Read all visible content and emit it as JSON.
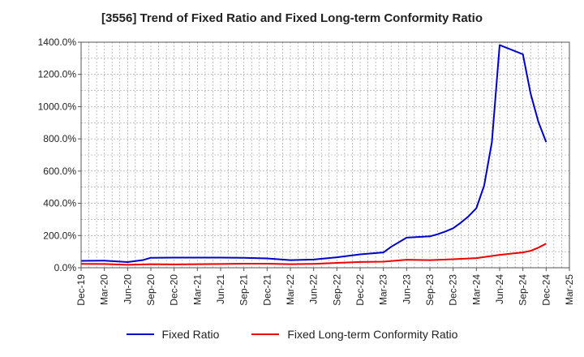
{
  "chart_data": {
    "type": "line",
    "title": "[3556]  Trend of Fixed Ratio and Fixed Long-term Conformity Ratio",
    "xlabel": "",
    "ylabel": "",
    "ylim": [
      0,
      1400
    ],
    "yticks": [
      0,
      200,
      400,
      600,
      800,
      1000,
      1200,
      1400
    ],
    "ytick_labels": [
      "0.0%",
      "200.0%",
      "400.0%",
      "600.0%",
      "800.0%",
      "1000.0%",
      "1200.0%",
      "1400.0%"
    ],
    "xtick_labels": [
      "Dec-19",
      "Mar-20",
      "Jun-20",
      "Sep-20",
      "Dec-20",
      "Mar-21",
      "Jun-21",
      "Sep-21",
      "Dec-21",
      "Mar-22",
      "Jun-22",
      "Sep-22",
      "Dec-22",
      "Mar-23",
      "Jun-23",
      "Sep-23",
      "Dec-23",
      "Mar-24",
      "Jun-24",
      "Sep-24",
      "Dec-24",
      "Mar-25"
    ],
    "grid": true,
    "legend_position": "bottom",
    "series": [
      {
        "name": "Fixed Ratio",
        "color": "#0000cc",
        "points": [
          [
            "Dec-19",
            43
          ],
          [
            "Mar-20",
            44
          ],
          [
            "Jun-20",
            35
          ],
          [
            "Aug-20",
            48
          ],
          [
            "Sep-20",
            62
          ],
          [
            "Dec-20",
            63
          ],
          [
            "Mar-21",
            63
          ],
          [
            "Jun-21",
            63
          ],
          [
            "Sep-21",
            62
          ],
          [
            "Dec-21",
            58
          ],
          [
            "Mar-22",
            47
          ],
          [
            "Jun-22",
            51
          ],
          [
            "Sep-22",
            65
          ],
          [
            "Dec-22",
            83
          ],
          [
            "Mar-23",
            95
          ],
          [
            "Apr-23",
            130
          ],
          [
            "Jun-23",
            187
          ],
          [
            "Sep-23",
            195
          ],
          [
            "Oct-23",
            208
          ],
          [
            "Nov-23",
            225
          ],
          [
            "Dec-23",
            245
          ],
          [
            "Jan-24",
            280
          ],
          [
            "Feb-24",
            320
          ],
          [
            "Mar-24",
            370
          ],
          [
            "Apr-24",
            510
          ],
          [
            "May-24",
            780
          ],
          [
            "Jun-24",
            1382
          ],
          [
            "Sep-24",
            1325
          ],
          [
            "Oct-24",
            1080
          ],
          [
            "Nov-24",
            905
          ],
          [
            "Dec-24",
            780
          ]
        ]
      },
      {
        "name": "Fixed Long-term Conformity Ratio",
        "color": "#ee0000",
        "points": [
          [
            "Dec-19",
            24
          ],
          [
            "Mar-20",
            23
          ],
          [
            "Jun-20",
            18
          ],
          [
            "Sep-20",
            22
          ],
          [
            "Dec-20",
            21
          ],
          [
            "Mar-21",
            22
          ],
          [
            "Jun-21",
            23
          ],
          [
            "Sep-21",
            25
          ],
          [
            "Dec-21",
            25
          ],
          [
            "Mar-22",
            22
          ],
          [
            "Jun-22",
            24
          ],
          [
            "Sep-22",
            30
          ],
          [
            "Dec-22",
            36
          ],
          [
            "Mar-23",
            38
          ],
          [
            "Jun-23",
            50
          ],
          [
            "Sep-23",
            47
          ],
          [
            "Dec-23",
            53
          ],
          [
            "Mar-24",
            60
          ],
          [
            "Jun-24",
            80
          ],
          [
            "Sep-24",
            95
          ],
          [
            "Oct-24",
            105
          ],
          [
            "Nov-24",
            125
          ],
          [
            "Dec-24",
            150
          ]
        ]
      }
    ]
  }
}
